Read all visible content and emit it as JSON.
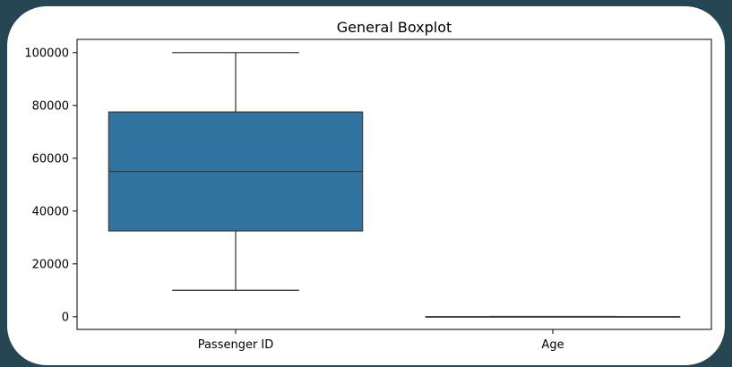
{
  "chart_data": {
    "type": "boxplot",
    "title": "General Boxplot",
    "xlabel": "",
    "ylabel": "",
    "ylim": [
      -4800,
      105000
    ],
    "yticks": [
      0,
      20000,
      40000,
      60000,
      80000,
      100000
    ],
    "ytick_labels": [
      "0",
      "20000",
      "40000",
      "60000",
      "80000",
      "100000"
    ],
    "categories": [
      "Passenger ID",
      "Age"
    ],
    "boxes": [
      {
        "category": "Passenger ID",
        "whisker_low": 10000,
        "q1": 32500,
        "median": 55000,
        "q3": 77500,
        "whisker_high": 100000
      },
      {
        "category": "Age",
        "whisker_low": 5,
        "q1": 20,
        "median": 30,
        "q3": 45,
        "whisker_high": 90
      }
    ],
    "box_color": "#3274a1",
    "line_color": "#3d3d3d",
    "grid": false,
    "legend": "none"
  }
}
